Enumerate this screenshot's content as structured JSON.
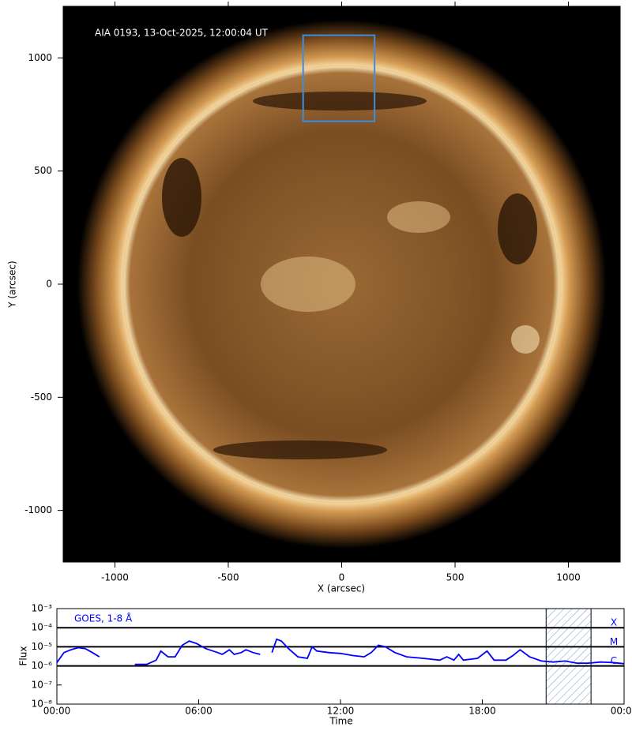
{
  "chart_data": [
    {
      "type": "image",
      "title": "AIA 0193, 13-Oct-2025, 12:00:04 UT",
      "xlabel": "X (arcsec)",
      "ylabel": "Y (arcsec)",
      "xlim": [
        -1228,
        1228
      ],
      "ylim": [
        -1228,
        1228
      ],
      "xticks": [
        -1000,
        -500,
        0,
        500,
        1000
      ],
      "yticks": [
        -1000,
        -500,
        0,
        500,
        1000
      ],
      "box": {
        "x": [
          -170,
          145
        ],
        "y": [
          720,
          1100
        ],
        "color": "#3a8fe0"
      }
    },
    {
      "type": "line",
      "xlabel": "Time",
      "ylabel": "Flux",
      "xlim": [
        0,
        24
      ],
      "ylim": [
        1e-08,
        0.001
      ],
      "ylog": true,
      "xticks": [
        {
          "value": 0,
          "label": "00:00"
        },
        {
          "value": 6,
          "label": "06:00"
        },
        {
          "value": 12,
          "label": "12:00"
        },
        {
          "value": 18,
          "label": "18:00"
        },
        {
          "value": 24,
          "label": "00:00"
        }
      ],
      "yticks": [
        {
          "value": 1e-08,
          "label": "10⁻⁸"
        },
        {
          "value": 1e-07,
          "label": "10⁻⁷"
        },
        {
          "value": 1e-06,
          "label": "10⁻⁶"
        },
        {
          "value": 1e-05,
          "label": "10⁻⁵"
        },
        {
          "value": 0.0001,
          "label": "10⁻⁴"
        },
        {
          "value": 0.001,
          "label": "10⁻³"
        }
      ],
      "flare_classes": [
        {
          "value": 0.0001,
          "label": "X"
        },
        {
          "value": 1e-05,
          "label": "M"
        },
        {
          "value": 1e-06,
          "label": "C"
        }
      ],
      "shaded": [
        20.7,
        22.6
      ],
      "x": [
        0,
        0.3,
        0.6,
        0.9,
        1.2,
        1.5,
        1.8,
        2.5,
        3.3,
        3.8,
        4.2,
        4.4,
        4.7,
        5.0,
        5.3,
        5.6,
        5.9,
        6.3,
        6.8,
        7.0,
        7.3,
        7.5,
        7.8,
        8.0,
        8.3,
        8.6,
        8.9,
        9.1,
        9.3,
        9.5,
        9.8,
        10.2,
        10.6,
        10.8,
        11.0,
        11.5,
        12.0,
        12.5,
        13.0,
        13.3,
        13.6,
        13.9,
        14.3,
        14.8,
        15.5,
        16.2,
        16.5,
        16.8,
        17.0,
        17.2,
        17.8,
        18.2,
        18.5,
        19.0,
        19.3,
        19.6,
        20.0,
        20.5,
        21.0,
        21.5,
        22.0,
        22.5,
        23.0,
        23.5,
        24.0
      ],
      "series": [
        {
          "name": "GOES, 1-8 Å",
          "color": "#0000ff",
          "values": [
            1.5e-06,
            5e-06,
            7e-06,
            9e-06,
            8e-06,
            5e-06,
            3e-06,
            null,
            1.2e-06,
            1.2e-06,
            2e-06,
            6e-06,
            3e-06,
            3e-06,
            1.2e-05,
            2e-05,
            1.5e-05,
            8e-06,
            5e-06,
            4e-06,
            7e-06,
            4e-06,
            5e-06,
            7e-06,
            5e-06,
            4e-06,
            null,
            5e-06,
            2.5e-05,
            2e-05,
            8e-06,
            3e-06,
            2.5e-06,
            1e-05,
            6e-06,
            5e-06,
            4.5e-06,
            3.5e-06,
            3e-06,
            5e-06,
            1.2e-05,
            1e-05,
            5e-06,
            3e-06,
            2.5e-06,
            2e-06,
            3e-06,
            2e-06,
            4e-06,
            2e-06,
            2.5e-06,
            6e-06,
            2e-06,
            2e-06,
            3.5e-06,
            7e-06,
            3e-06,
            1.8e-06,
            1.6e-06,
            1.8e-06,
            1.4e-06,
            1.4e-06,
            1.6e-06,
            1.5e-06,
            1.3e-06
          ]
        }
      ]
    }
  ]
}
